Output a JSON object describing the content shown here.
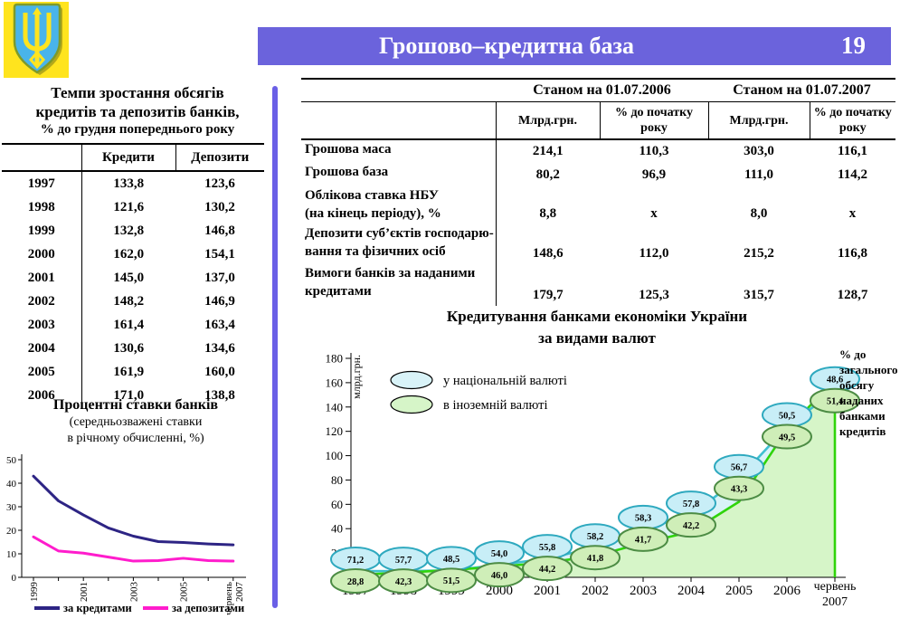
{
  "header": {
    "title": "Грошово–кредитна база",
    "page_number": "19"
  },
  "emblem": {
    "name": "ukraine-coat-of-arms"
  },
  "colors": {
    "header_bar": "#6b63dc",
    "divider": "#6a5fe6",
    "credit_line": "#2d2484",
    "deposit_line": "#ff1ccc",
    "national_line": "#3fc0d0",
    "national_fill": "#d9f3f8",
    "foreign_line": "#2fd40a",
    "foreign_fill": "#d6f5c8"
  },
  "left": {
    "growth_table": {
      "title_line1": "Темпи зростання обсягів",
      "title_line2": "кредитів та депозитів банків,",
      "title_line3": "% до грудня попереднього року",
      "columns": [
        "Кредити",
        "Депозити"
      ],
      "rows": [
        [
          "1997",
          "133,8",
          "123,6"
        ],
        [
          "1998",
          "121,6",
          "130,2"
        ],
        [
          "1999",
          "132,8",
          "146,8"
        ],
        [
          "2000",
          "162,0",
          "154,1"
        ],
        [
          "2001",
          "145,0",
          "137,0"
        ],
        [
          "2002",
          "148,2",
          "146,9"
        ],
        [
          "2003",
          "161,4",
          "163,4"
        ],
        [
          "2004",
          "130,6",
          "134,6"
        ],
        [
          "2005",
          "161,9",
          "160,0"
        ],
        [
          "2006",
          "171,0",
          "138,8"
        ]
      ]
    },
    "rates_chart": {
      "title": "Процентні ставки банків",
      "subtitle_line1": "(середньозважені ставки",
      "subtitle_line2": "в річному обчисленні, %)"
    }
  },
  "right": {
    "money_table": {
      "group_headers": [
        "Станом на 01.07.2006",
        "Станом на 01.07.2007"
      ],
      "sub_headers": [
        "Млрд.грн.",
        "% до початку року",
        "Млрд.грн.",
        "% до початку року"
      ],
      "rows": [
        {
          "label_lines": [
            "Грошова маса"
          ],
          "values": [
            "214,1",
            "110,3",
            "303,0",
            "116,1"
          ]
        },
        {
          "label_lines": [
            "Грошова база"
          ],
          "values": [
            "80,2",
            "96,9",
            "111,0",
            "114,2"
          ]
        },
        {
          "label_lines": [
            "Облікова ставка НБУ",
            "(на кінець періоду), %"
          ],
          "values": [
            "8,8",
            "х",
            "8,0",
            "х"
          ]
        },
        {
          "label_lines": [
            "Депозити суб’єктів господарю-",
            "вання та фізичних осіб"
          ],
          "values": [
            "148,6",
            "112,0",
            "215,2",
            "116,8"
          ]
        },
        {
          "label_lines": [
            "Вимоги банків за наданими",
            "кредитами"
          ],
          "values": [
            "179,7",
            "125,3",
            "315,7",
            "128,7"
          ]
        }
      ]
    },
    "credit_chart": {
      "title_line1": "Кредитування банками економіки України",
      "title_line2": "за видами валют",
      "annotation": "% до загального обсягу наданих банками кредитів"
    }
  },
  "chart_data": [
    {
      "type": "line",
      "title": "Процентні ставки банків (середньозважені ставки в річному обчисленні, %)",
      "x": [
        "1999",
        "2000",
        "2001",
        "2002",
        "2003",
        "2004",
        "2005",
        "2006",
        "червень 2007"
      ],
      "x_ticks_shown": [
        "1999",
        "2001",
        "2003",
        "2005",
        "червень 2007"
      ],
      "ylim": [
        0,
        50
      ],
      "yticks": [
        0,
        10,
        20,
        30,
        40,
        50
      ],
      "grid": false,
      "legend_position": "bottom",
      "series": [
        {
          "name": "за кредитами",
          "color": "#2d2484",
          "values": [
            43,
            32.5,
            26.5,
            21,
            17.5,
            15.2,
            14.8,
            14.2,
            13.8
          ]
        },
        {
          "name": "за депозитами",
          "color": "#ff1ccc",
          "values": [
            17.2,
            11.2,
            10.3,
            8.6,
            6.9,
            7.1,
            8.1,
            7.1,
            6.9
          ]
        }
      ]
    },
    {
      "type": "area",
      "title": "Кредитування банками економіки України за видами валют",
      "ylabel": "млрд.грн.",
      "categories": [
        "1997",
        "1998",
        "1999",
        "2000",
        "2001",
        "2002",
        "2003",
        "2004",
        "2005",
        "2006",
        "червень 2007"
      ],
      "ylim": [
        0,
        180
      ],
      "yticks": [
        0,
        20,
        40,
        60,
        80,
        100,
        120,
        140,
        160,
        180
      ],
      "legend_position": "top-left-inside",
      "annotation": "% до загального обсягу наданих банками кредитів",
      "series": [
        {
          "name": "у національній валюті",
          "line_color": "#3fc0d0",
          "fill_color": "#d9f3f8",
          "label_fill": "#c8eef7",
          "label_border": "#2ea9bf",
          "values_bln_est": [
            5.2,
            5.1,
            5.7,
            10.3,
            15.5,
            24.4,
            39.5,
            51.2,
            81.3,
            123.8,
            153.4
          ],
          "share_labels": [
            "71,2",
            "57,7",
            "48,5",
            "54,0",
            "55,8",
            "58,2",
            "58,3",
            "57,8",
            "56,7",
            "50,5",
            "48,6"
          ]
        },
        {
          "name": "в іноземній валюті",
          "line_color": "#2fd40a",
          "fill_color": "#d6f5c8",
          "label_fill": "#cfeeb8",
          "label_border": "#4c8c44",
          "values_bln_est": [
            2.1,
            3.8,
            6.1,
            8.8,
            12.2,
            17.5,
            28.3,
            37.4,
            62.1,
            121.4,
            162.3
          ],
          "share_labels": [
            "28,8",
            "42,3",
            "51,5",
            "46,0",
            "44,2",
            "41,8",
            "41,7",
            "42,2",
            "43,3",
            "49,5",
            "51,4"
          ]
        }
      ]
    }
  ]
}
